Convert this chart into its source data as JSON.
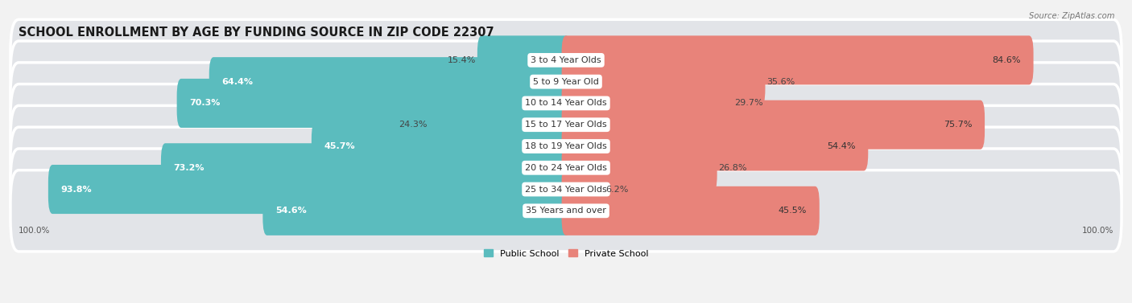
{
  "title": "SCHOOL ENROLLMENT BY AGE BY FUNDING SOURCE IN ZIP CODE 22307",
  "source": "Source: ZipAtlas.com",
  "categories": [
    "3 to 4 Year Olds",
    "5 to 9 Year Old",
    "10 to 14 Year Olds",
    "15 to 17 Year Olds",
    "18 to 19 Year Olds",
    "20 to 24 Year Olds",
    "25 to 34 Year Olds",
    "35 Years and over"
  ],
  "public_pct": [
    15.4,
    64.4,
    70.3,
    24.3,
    45.7,
    73.2,
    93.8,
    54.6
  ],
  "private_pct": [
    84.6,
    35.6,
    29.7,
    75.7,
    54.4,
    26.8,
    6.2,
    45.5
  ],
  "public_color": "#5bbcbe",
  "private_color": "#e8837a",
  "bg_color": "#f2f2f2",
  "row_bg_color": "#e2e4e8",
  "title_fontsize": 10.5,
  "label_fontsize": 8.0,
  "pct_fontsize": 8.0,
  "axis_label_fontsize": 7.5
}
